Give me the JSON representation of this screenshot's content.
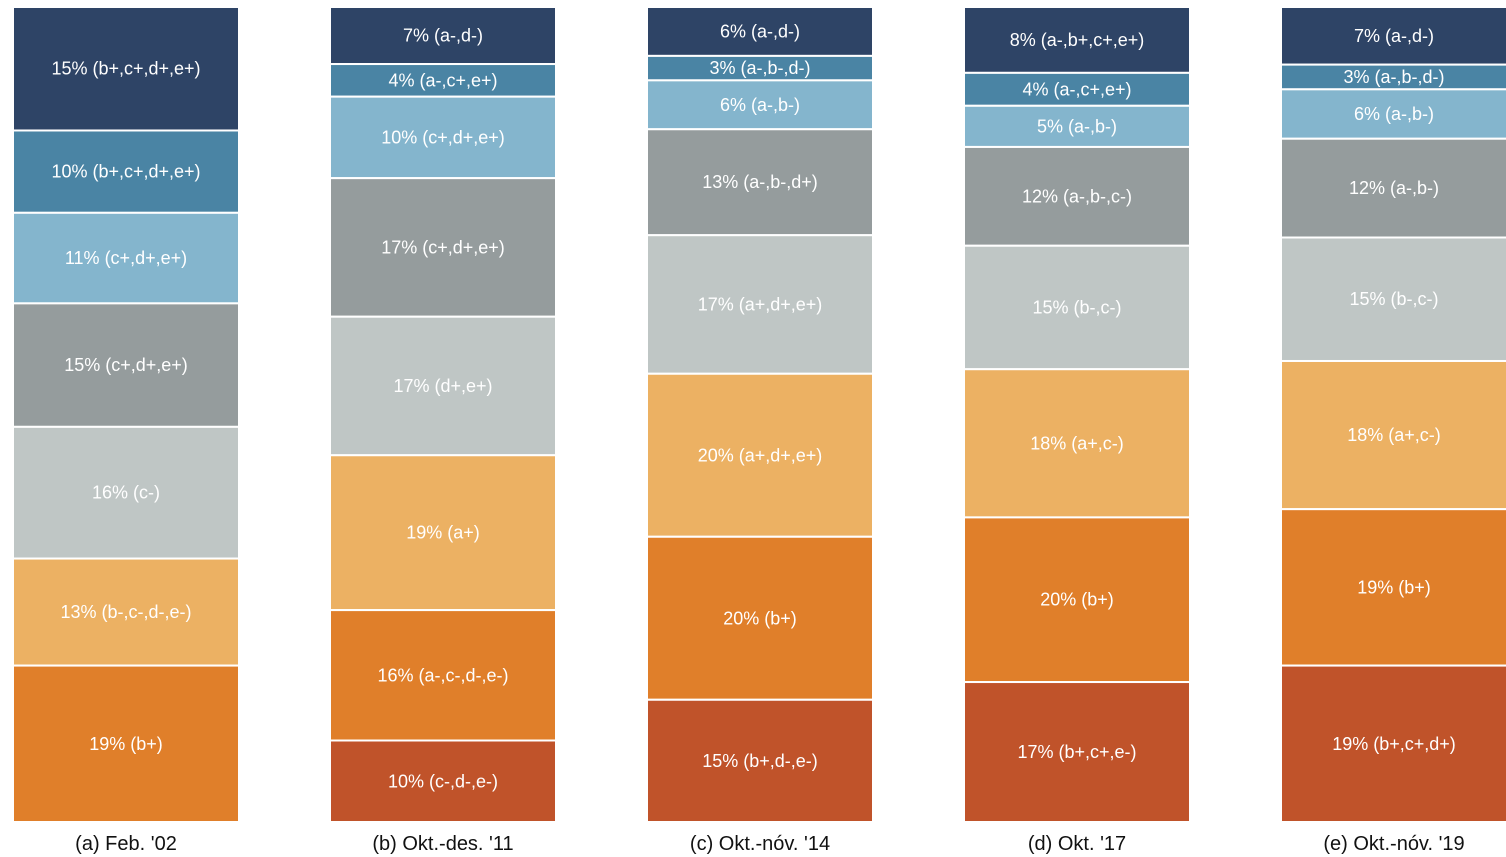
{
  "chart_data": {
    "type": "bar",
    "stacked": true,
    "normalized": true,
    "unit": "%",
    "colors": {
      "navy": "#2e4466",
      "teal": "#4a84a4",
      "lightblue": "#84b5cd",
      "gray": "#959c9d",
      "lightgray": "#bfc6c5",
      "tan": "#ecb163",
      "orange": "#e07f2a",
      "rust": "#c0532a"
    },
    "columns": [
      {
        "caption": "(a) Feb. '02",
        "segments": [
          {
            "value": 15,
            "label": "15% (b+,c+,d+,e+)",
            "color": "navy"
          },
          {
            "value": 10,
            "label": "10% (b+,c+,d+,e+)",
            "color": "teal"
          },
          {
            "value": 11,
            "label": "11% (c+,d+,e+)",
            "color": "lightblue"
          },
          {
            "value": 15,
            "label": "15% (c+,d+,e+)",
            "color": "gray"
          },
          {
            "value": 16,
            "label": "16% (c-)",
            "color": "lightgray"
          },
          {
            "value": 13,
            "label": "13% (b-,c-,d-,e-)",
            "color": "tan"
          },
          {
            "value": 19,
            "label": "19% (b+)",
            "color": "orange"
          }
        ]
      },
      {
        "caption": "(b) Okt.-des. '11",
        "segments": [
          {
            "value": 7,
            "label": "7% (a-,d-)",
            "color": "navy"
          },
          {
            "value": 4,
            "label": "4% (a-,c+,e+)",
            "color": "teal"
          },
          {
            "value": 10,
            "label": "10% (c+,d+,e+)",
            "color": "lightblue"
          },
          {
            "value": 17,
            "label": "17% (c+,d+,e+)",
            "color": "gray"
          },
          {
            "value": 17,
            "label": "17% (d+,e+)",
            "color": "lightgray"
          },
          {
            "value": 19,
            "label": "19% (a+)",
            "color": "tan"
          },
          {
            "value": 16,
            "label": "16% (a-,c-,d-,e-)",
            "color": "orange"
          },
          {
            "value": 10,
            "label": "10% (c-,d-,e-)",
            "color": "rust"
          }
        ]
      },
      {
        "caption": "(c) Okt.-nóv. '14",
        "segments": [
          {
            "value": 6,
            "label": "6% (a-,d-)",
            "color": "navy"
          },
          {
            "value": 3,
            "label": "3% (a-,b-,d-)",
            "color": "teal"
          },
          {
            "value": 6,
            "label": "6% (a-,b-)",
            "color": "lightblue"
          },
          {
            "value": 13,
            "label": "13% (a-,b-,d+)",
            "color": "gray"
          },
          {
            "value": 17,
            "label": "17% (a+,d+,e+)",
            "color": "lightgray"
          },
          {
            "value": 20,
            "label": "20% (a+,d+,e+)",
            "color": "tan"
          },
          {
            "value": 20,
            "label": "20% (b+)",
            "color": "orange"
          },
          {
            "value": 15,
            "label": "15% (b+,d-,e-)",
            "color": "rust"
          }
        ]
      },
      {
        "caption": "(d) Okt. '17",
        "segments": [
          {
            "value": 8,
            "label": "8% (a-,b+,c+,e+)",
            "color": "navy"
          },
          {
            "value": 4,
            "label": "4% (a-,c+,e+)",
            "color": "teal"
          },
          {
            "value": 5,
            "label": "5% (a-,b-)",
            "color": "lightblue"
          },
          {
            "value": 12,
            "label": "12% (a-,b-,c-)",
            "color": "gray"
          },
          {
            "value": 15,
            "label": "15% (b-,c-)",
            "color": "lightgray"
          },
          {
            "value": 18,
            "label": "18% (a+,c-)",
            "color": "tan"
          },
          {
            "value": 20,
            "label": "20% (b+)",
            "color": "orange"
          },
          {
            "value": 17,
            "label": "17% (b+,c+,e-)",
            "color": "rust"
          }
        ]
      },
      {
        "caption": "(e) Okt.-nóv. '19",
        "segments": [
          {
            "value": 7,
            "label": "7% (a-,d-)",
            "color": "navy"
          },
          {
            "value": 3,
            "label": "3% (a-,b-,d-)",
            "color": "teal"
          },
          {
            "value": 6,
            "label": "6% (a-,b-)",
            "color": "lightblue"
          },
          {
            "value": 12,
            "label": "12% (a-,b-)",
            "color": "gray"
          },
          {
            "value": 15,
            "label": "15% (b-,c-)",
            "color": "lightgray"
          },
          {
            "value": 18,
            "label": "18% (a+,c-)",
            "color": "tan"
          },
          {
            "value": 19,
            "label": "19% (b+)",
            "color": "orange"
          },
          {
            "value": 19,
            "label": "19% (b+,c+,d+)",
            "color": "rust"
          }
        ]
      }
    ]
  }
}
